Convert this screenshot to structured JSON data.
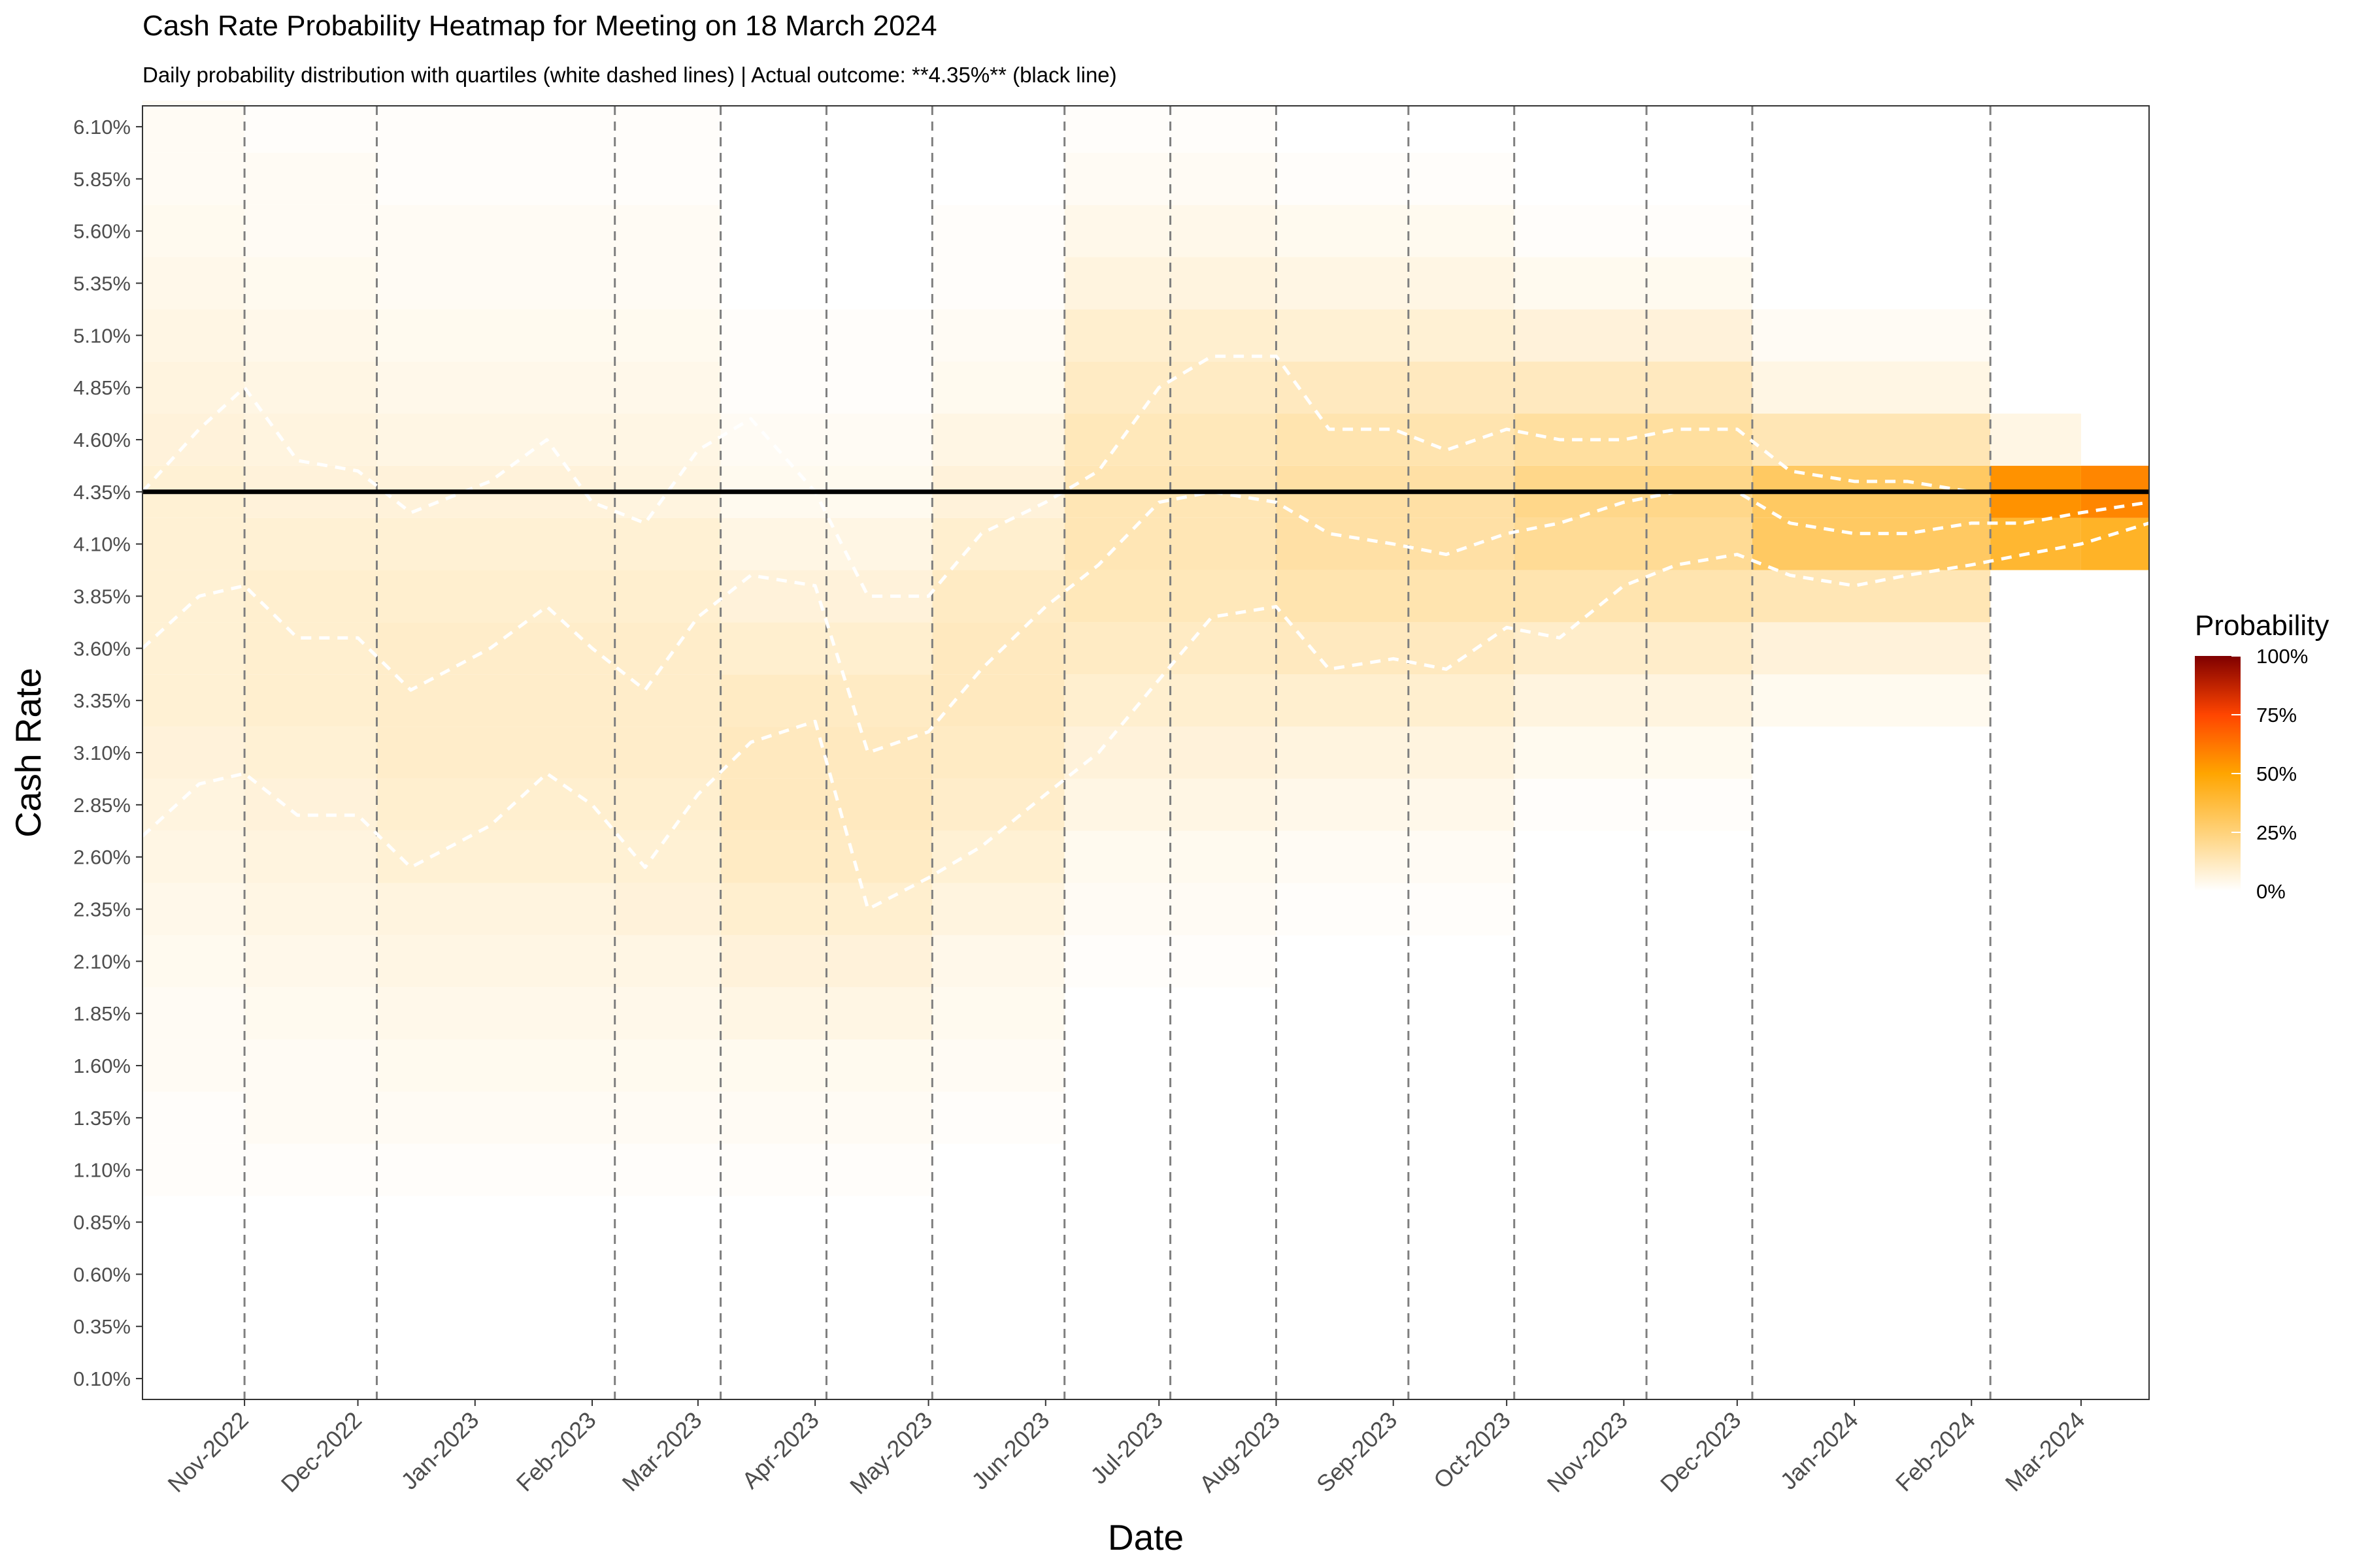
{
  "chart_data": {
    "type": "heatmap",
    "title": "Cash Rate Probability Heatmap for Meeting on 18 March 2024",
    "subtitle": "Daily probability distribution with quartiles (white dashed lines) | Actual outcome: **4.35%** (black line)",
    "xlabel": "Date",
    "ylabel": "Cash Rate",
    "x_range": [
      "2022-10-05",
      "2024-03-19"
    ],
    "y_range": [
      0.0,
      6.2
    ],
    "y_ticks": [
      "0.10%",
      "0.35%",
      "0.60%",
      "0.85%",
      "1.10%",
      "1.35%",
      "1.60%",
      "1.85%",
      "2.10%",
      "2.35%",
      "2.60%",
      "2.85%",
      "3.10%",
      "3.35%",
      "3.60%",
      "3.85%",
      "4.10%",
      "4.35%",
      "4.60%",
      "4.85%",
      "5.10%",
      "5.35%",
      "5.60%",
      "5.85%",
      "6.10%"
    ],
    "y_tick_values": [
      0.1,
      0.35,
      0.6,
      0.85,
      1.1,
      1.35,
      1.6,
      1.85,
      2.1,
      2.35,
      2.6,
      2.85,
      3.1,
      3.35,
      3.6,
      3.85,
      4.1,
      4.35,
      4.6,
      4.85,
      5.1,
      5.35,
      5.6,
      5.85,
      6.1
    ],
    "x_ticks": [
      "Nov-2022",
      "Dec-2022",
      "Jan-2023",
      "Feb-2023",
      "Mar-2023",
      "Apr-2023",
      "May-2023",
      "Jun-2023",
      "Jul-2023",
      "Aug-2023",
      "Sep-2023",
      "Oct-2023",
      "Nov-2023",
      "Dec-2023",
      "Jan-2024",
      "Feb-2024",
      "Mar-2024"
    ],
    "x_tick_dates": [
      "2022-11-01",
      "2022-12-01",
      "2023-01-01",
      "2023-02-01",
      "2023-03-01",
      "2023-04-01",
      "2023-05-01",
      "2023-06-01",
      "2023-07-01",
      "2023-08-01",
      "2023-09-01",
      "2023-10-01",
      "2023-11-01",
      "2023-12-01",
      "2024-01-01",
      "2024-02-01",
      "2024-03-01"
    ],
    "meeting_dates": [
      "2022-11-01",
      "2022-12-06",
      "2023-02-07",
      "2023-03-07",
      "2023-04-04",
      "2023-05-02",
      "2023-06-06",
      "2023-07-04",
      "2023-08-01",
      "2023-09-05",
      "2023-10-03",
      "2023-11-07",
      "2023-12-05",
      "2024-02-06"
    ],
    "actual_outcome": 4.35,
    "actual_outcome_label": "**4.35%**",
    "quartiles": {
      "dates": [
        "2022-10-05",
        "2022-10-20",
        "2022-11-01",
        "2022-11-15",
        "2022-12-01",
        "2022-12-15",
        "2023-01-05",
        "2023-01-20",
        "2023-02-01",
        "2023-02-15",
        "2023-03-01",
        "2023-03-15",
        "2023-04-01",
        "2023-04-15",
        "2023-05-01",
        "2023-05-15",
        "2023-06-01",
        "2023-06-15",
        "2023-07-01",
        "2023-07-15",
        "2023-08-01",
        "2023-08-15",
        "2023-09-01",
        "2023-09-15",
        "2023-10-01",
        "2023-10-15",
        "2023-11-01",
        "2023-11-15",
        "2023-12-01",
        "2023-12-15",
        "2024-01-01",
        "2024-01-15",
        "2024-02-01",
        "2024-02-15",
        "2024-03-01",
        "2024-03-19"
      ],
      "q1": [
        2.7,
        2.95,
        3.0,
        2.8,
        2.8,
        2.55,
        2.75,
        3.0,
        2.85,
        2.55,
        2.9,
        3.15,
        3.25,
        2.35,
        2.5,
        2.65,
        2.9,
        3.1,
        3.45,
        3.75,
        3.8,
        3.5,
        3.55,
        3.5,
        3.7,
        3.65,
        3.9,
        4.0,
        4.05,
        3.95,
        3.9,
        3.95,
        4.0,
        4.05,
        4.1,
        4.2
      ],
      "q2": [
        3.6,
        3.85,
        3.9,
        3.65,
        3.65,
        3.4,
        3.6,
        3.8,
        3.6,
        3.4,
        3.75,
        3.95,
        3.9,
        3.1,
        3.2,
        3.5,
        3.8,
        4.0,
        4.3,
        4.35,
        4.3,
        4.15,
        4.1,
        4.05,
        4.15,
        4.2,
        4.3,
        4.35,
        4.35,
        4.2,
        4.15,
        4.15,
        4.2,
        4.2,
        4.25,
        4.3
      ],
      "q3": [
        4.35,
        4.65,
        4.85,
        4.5,
        4.45,
        4.25,
        4.4,
        4.6,
        4.3,
        4.2,
        4.55,
        4.7,
        4.35,
        3.85,
        3.85,
        4.15,
        4.3,
        4.45,
        4.85,
        5.0,
        5.0,
        4.65,
        4.65,
        4.55,
        4.65,
        4.6,
        4.6,
        4.65,
        4.65,
        4.45,
        4.4,
        4.4,
        4.35,
        4.35,
        4.35,
        4.35
      ]
    },
    "heatmap_columns": [
      {
        "start": "2022-10-05",
        "end": "2022-11-01",
        "values": {
          "1.1": 0.01,
          "1.35": 0.01,
          "1.6": 0.02,
          "1.85": 0.02,
          "2.1": 0.03,
          "2.35": 0.04,
          "2.6": 0.05,
          "2.85": 0.06,
          "3.1": 0.07,
          "3.35": 0.08,
          "3.6": 0.08,
          "3.85": 0.08,
          "4.1": 0.08,
          "4.35": 0.08,
          "4.6": 0.07,
          "4.85": 0.06,
          "5.1": 0.05,
          "5.35": 0.04,
          "5.6": 0.03,
          "5.85": 0.02,
          "6.1": 0.02
        }
      },
      {
        "start": "2022-11-01",
        "end": "2022-12-06",
        "values": {
          "1.1": 0.01,
          "1.35": 0.02,
          "1.6": 0.02,
          "1.85": 0.03,
          "2.1": 0.04,
          "2.35": 0.05,
          "2.6": 0.06,
          "2.85": 0.07,
          "3.1": 0.08,
          "3.35": 0.09,
          "3.6": 0.09,
          "3.85": 0.09,
          "4.1": 0.08,
          "4.35": 0.07,
          "4.6": 0.06,
          "4.85": 0.05,
          "5.1": 0.04,
          "5.35": 0.03,
          "5.6": 0.02,
          "5.85": 0.02,
          "6.1": 0.01
        }
      },
      {
        "start": "2022-12-06",
        "end": "2023-02-07",
        "values": {
          "1.1": 0.01,
          "1.35": 0.02,
          "1.6": 0.03,
          "1.85": 0.04,
          "2.1": 0.05,
          "2.35": 0.06,
          "2.6": 0.08,
          "2.85": 0.09,
          "3.1": 0.1,
          "3.35": 0.1,
          "3.6": 0.1,
          "3.85": 0.09,
          "4.1": 0.08,
          "4.35": 0.07,
          "4.6": 0.05,
          "4.85": 0.04,
          "5.1": 0.03,
          "5.35": 0.02,
          "5.6": 0.02,
          "5.85": 0.01,
          "6.1": 0.01
        }
      },
      {
        "start": "2023-02-07",
        "end": "2023-03-07",
        "values": {
          "1.1": 0.01,
          "1.35": 0.02,
          "1.6": 0.03,
          "1.85": 0.04,
          "2.1": 0.05,
          "2.35": 0.07,
          "2.6": 0.08,
          "2.85": 0.09,
          "3.1": 0.1,
          "3.35": 0.1,
          "3.6": 0.1,
          "3.85": 0.09,
          "4.1": 0.08,
          "4.35": 0.06,
          "4.6": 0.05,
          "4.85": 0.04,
          "5.1": 0.03,
          "5.35": 0.02,
          "5.6": 0.02,
          "5.85": 0.01,
          "6.1": 0.01
        }
      },
      {
        "start": "2023-03-07",
        "end": "2023-04-04",
        "values": {
          "1.1": 0.01,
          "1.35": 0.02,
          "1.6": 0.03,
          "1.85": 0.05,
          "2.1": 0.07,
          "2.35": 0.09,
          "2.6": 0.11,
          "2.85": 0.12,
          "3.1": 0.12,
          "3.35": 0.11,
          "3.6": 0.09,
          "3.85": 0.07,
          "4.1": 0.05,
          "4.35": 0.03,
          "4.6": 0.02,
          "4.85": 0.01,
          "5.1": 0.01
        }
      },
      {
        "start": "2023-04-04",
        "end": "2023-05-02",
        "values": {
          "1.1": 0.01,
          "1.35": 0.02,
          "1.6": 0.03,
          "1.85": 0.05,
          "2.1": 0.07,
          "2.35": 0.09,
          "2.6": 0.11,
          "2.85": 0.12,
          "3.1": 0.12,
          "3.35": 0.11,
          "3.6": 0.09,
          "3.85": 0.07,
          "4.1": 0.05,
          "4.35": 0.03,
          "4.6": 0.02,
          "4.85": 0.01,
          "5.1": 0.01
        }
      },
      {
        "start": "2023-05-02",
        "end": "2023-06-06",
        "values": {
          "1.35": 0.01,
          "1.6": 0.02,
          "1.85": 0.03,
          "2.1": 0.04,
          "2.35": 0.06,
          "2.6": 0.08,
          "2.85": 0.1,
          "3.1": 0.11,
          "3.35": 0.12,
          "3.6": 0.12,
          "3.85": 0.11,
          "4.1": 0.09,
          "4.35": 0.07,
          "4.6": 0.05,
          "4.85": 0.03,
          "5.1": 0.02,
          "5.35": 0.01,
          "5.6": 0.01
        }
      },
      {
        "start": "2023-06-06",
        "end": "2023-08-01",
        "values": {
          "2.1": 0.01,
          "2.35": 0.02,
          "2.6": 0.03,
          "2.85": 0.05,
          "3.1": 0.07,
          "3.35": 0.09,
          "3.6": 0.11,
          "3.85": 0.13,
          "4.1": 0.14,
          "4.35": 0.14,
          "4.6": 0.13,
          "4.85": 0.11,
          "5.1": 0.09,
          "5.35": 0.06,
          "5.6": 0.04,
          "5.85": 0.02,
          "6.1": 0.01
        }
      },
      {
        "start": "2023-08-01",
        "end": "2023-10-03",
        "values": {
          "2.35": 0.01,
          "2.6": 0.02,
          "2.85": 0.04,
          "3.1": 0.06,
          "3.35": 0.09,
          "3.6": 0.12,
          "3.85": 0.15,
          "4.1": 0.17,
          "4.35": 0.17,
          "4.6": 0.15,
          "4.85": 0.12,
          "5.1": 0.08,
          "5.35": 0.05,
          "5.6": 0.03,
          "5.85": 0.01
        }
      },
      {
        "start": "2023-10-03",
        "end": "2023-12-05",
        "values": {
          "2.85": 0.01,
          "3.1": 0.03,
          "3.35": 0.06,
          "3.6": 0.1,
          "3.85": 0.15,
          "4.1": 0.2,
          "4.35": 0.22,
          "4.6": 0.18,
          "4.85": 0.12,
          "5.1": 0.07,
          "5.35": 0.03,
          "5.6": 0.01
        }
      },
      {
        "start": "2023-12-05",
        "end": "2024-02-06",
        "values": {
          "3.35": 0.03,
          "3.6": 0.07,
          "3.85": 0.14,
          "4.1": 0.3,
          "4.35": 0.3,
          "4.6": 0.14,
          "4.85": 0.05,
          "5.1": 0.02
        }
      },
      {
        "start": "2024-02-06",
        "end": "2024-03-01",
        "values": {
          "4.1": 0.4,
          "4.35": 0.55,
          "4.6": 0.05
        }
      },
      {
        "start": "2024-03-01",
        "end": "2024-03-19",
        "values": {
          "4.1": 0.42,
          "4.35": 0.58
        }
      }
    ],
    "legend": {
      "title": "Probability",
      "labels": [
        "100%",
        "75%",
        "50%",
        "25%",
        "0%"
      ],
      "colors": [
        "#7f0000",
        "#ff4500",
        "#ffa500",
        "#ffd27a",
        "#ffffff"
      ],
      "position": "right"
    },
    "grid": false,
    "colors": {
      "actual_line": "#000000",
      "quartile_lines": "#ffffff",
      "meeting_lines": "#7f7f7f"
    }
  }
}
